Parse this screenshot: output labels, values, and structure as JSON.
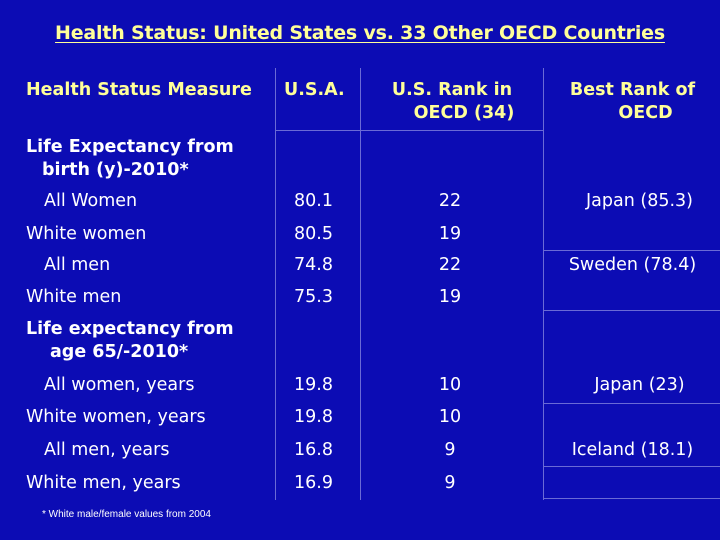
{
  "title": "Health Status: United States vs. 33 Other OECD Countries",
  "headers": {
    "measure": "Health Status Measure",
    "usa": "U.S.A.",
    "rank_line1": "U.S. Rank in",
    "rank_line2": "OECD (34)",
    "best_line1": "Best Rank of",
    "best_line2": "OECD"
  },
  "section1": {
    "line1": "Life Expectancy from",
    "line2": "birth (y)-2010*"
  },
  "section2": {
    "line1": "Life expectancy from",
    "line2": "age 65/-2010*"
  },
  "rows1": [
    {
      "measure": "All Women",
      "usa": "80.1",
      "rank": "22",
      "best": "Japan (85.3)"
    },
    {
      "measure": "White women",
      "usa": "80.5",
      "rank": "19",
      "best": ""
    },
    {
      "measure": "All men",
      "usa": "74.8",
      "rank": "22",
      "best": "Sweden (78.4)"
    },
    {
      "measure": "White men",
      "usa": "75.3",
      "rank": "19",
      "best": ""
    }
  ],
  "rows2": [
    {
      "measure": "All women, years",
      "usa": "19.8",
      "rank": "10",
      "best": "Japan (23)"
    },
    {
      "measure": "White women, years",
      "usa": "19.8",
      "rank": "10",
      "best": ""
    },
    {
      "measure": "All men, years",
      "usa": "16.8",
      "rank": "9",
      "best": "Iceland (18.1)"
    },
    {
      "measure": "White men, years",
      "usa": "16.9",
      "rank": "9",
      "best": ""
    }
  ],
  "footnote": "* White male/female values from 2004",
  "colors": {
    "background": "#0c0cb4",
    "header_text": "#ffff99",
    "body_text": "#ffffff",
    "grid": "#6a6ad6"
  }
}
